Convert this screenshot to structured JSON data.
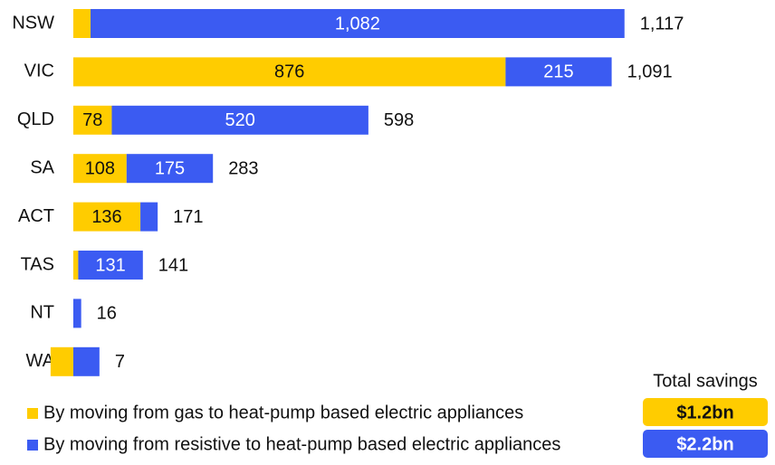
{
  "chart_data": {
    "type": "stacked-bar-horizontal",
    "categories": [
      "NSW",
      "VIC",
      "QLD",
      "SA",
      "ACT",
      "TAS",
      "NT",
      "WA"
    ],
    "series": [
      {
        "name": "By moving from gas to heat-pump based electric appliances",
        "color": "#FFCC00",
        "text_color": "#111111",
        "values": [
          35,
          876,
          78,
          108,
          136,
          10,
          0,
          -46
        ],
        "value_labels": [
          null,
          "876",
          "78",
          "108",
          "136",
          null,
          null,
          null
        ],
        "total_savings": "$1.2bn"
      },
      {
        "name": "By moving from resistive to heat-pump based electric appliances",
        "color": "#3B5BF2",
        "text_color": "#FFFFFF",
        "values": [
          1082,
          215,
          520,
          175,
          35,
          131,
          16,
          53
        ],
        "value_labels": [
          "1,082",
          "215",
          "520",
          "175",
          null,
          "131",
          null,
          null
        ],
        "total_savings": "$2.2bn"
      }
    ],
    "totals": [
      1117,
      1091,
      598,
      283,
      171,
      141,
      16,
      7
    ],
    "total_labels": [
      "1,117",
      "1,091",
      "598",
      "283",
      "171",
      "141",
      "16",
      "7"
    ],
    "total_savings_title": "Total savings",
    "xlim": [
      -50,
      1200
    ]
  }
}
